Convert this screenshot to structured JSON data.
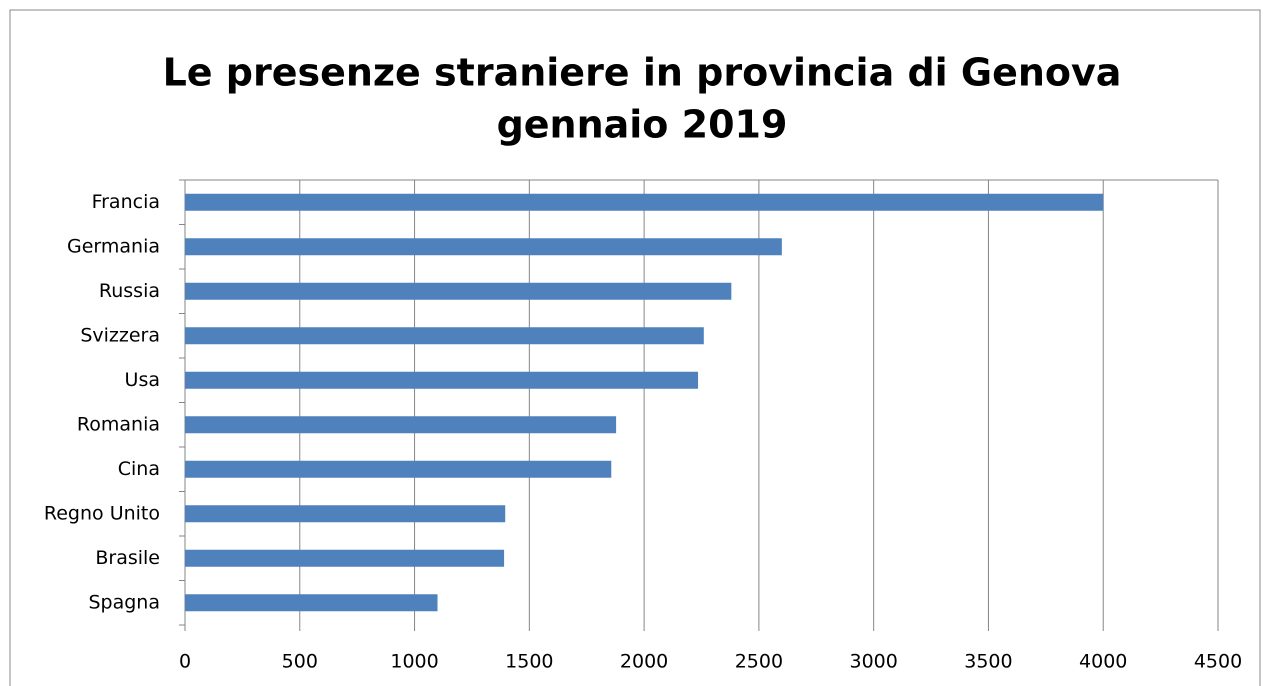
{
  "chart_data": {
    "type": "bar",
    "orientation": "horizontal",
    "title": [
      "Le presenze straniere in provincia di Genova",
      "gennaio 2019"
    ],
    "categories": [
      "Francia",
      "Germania",
      "Russia",
      "Svizzera",
      "Usa",
      "Romania",
      "Cina",
      "Regno Unito",
      "Brasile",
      "Spagna"
    ],
    "values": [
      4000,
      2600,
      2380,
      2260,
      2235,
      1878,
      1857,
      1395,
      1390,
      1100
    ],
    "color": "#4f81bd",
    "xlim": [
      0,
      4500
    ],
    "xticks": [
      0,
      500,
      1000,
      1500,
      2000,
      2500,
      3000,
      3500,
      4000,
      4500
    ],
    "grid": true
  }
}
